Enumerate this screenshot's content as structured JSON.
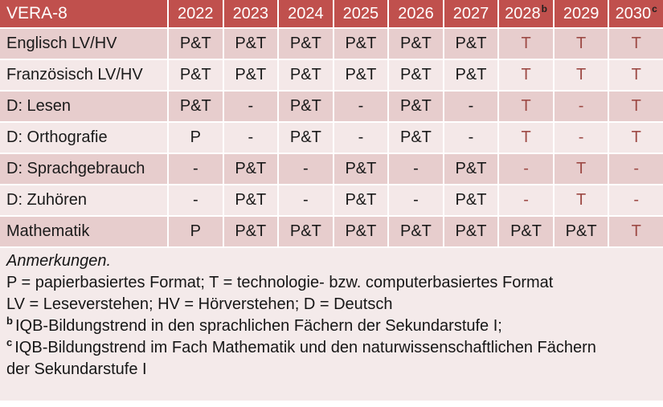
{
  "table": {
    "header": {
      "label": "VERA-8",
      "years": [
        {
          "label": "2022",
          "sup": ""
        },
        {
          "label": "2023",
          "sup": ""
        },
        {
          "label": "2024",
          "sup": ""
        },
        {
          "label": "2025",
          "sup": ""
        },
        {
          "label": "2026",
          "sup": ""
        },
        {
          "label": "2027",
          "sup": ""
        },
        {
          "label": "2028",
          "sup": "b"
        },
        {
          "label": "2029",
          "sup": ""
        },
        {
          "label": "2030",
          "sup": "c"
        }
      ]
    },
    "rows": [
      {
        "label": "Englisch LV/HV",
        "values": [
          "P&T",
          "P&T",
          "P&T",
          "P&T",
          "P&T",
          "P&T",
          "T",
          "T",
          "T"
        ],
        "red": [
          false,
          false,
          false,
          false,
          false,
          false,
          true,
          true,
          true
        ]
      },
      {
        "label": "Französisch LV/HV",
        "values": [
          "P&T",
          "P&T",
          "P&T",
          "P&T",
          "P&T",
          "P&T",
          "T",
          "T",
          "T"
        ],
        "red": [
          false,
          false,
          false,
          false,
          false,
          false,
          true,
          true,
          true
        ]
      },
      {
        "label": "D: Lesen",
        "values": [
          "P&T",
          "-",
          "P&T",
          "-",
          "P&T",
          "-",
          "T",
          "-",
          "T"
        ],
        "red": [
          false,
          false,
          false,
          false,
          false,
          false,
          true,
          true,
          true
        ]
      },
      {
        "label": "D: Orthografie",
        "values": [
          "P",
          "-",
          "P&T",
          "-",
          "P&T",
          "-",
          "T",
          "-",
          "T"
        ],
        "red": [
          false,
          false,
          false,
          false,
          false,
          false,
          true,
          true,
          true
        ]
      },
      {
        "label": "D: Sprachgebrauch",
        "values": [
          "-",
          "P&T",
          "-",
          "P&T",
          "-",
          "P&T",
          "-",
          "T",
          "-"
        ],
        "red": [
          false,
          false,
          false,
          false,
          false,
          false,
          true,
          true,
          true
        ]
      },
      {
        "label": "D: Zuhören",
        "values": [
          "-",
          "P&T",
          "-",
          "P&T",
          "-",
          "P&T",
          "-",
          "T",
          "-"
        ],
        "red": [
          false,
          false,
          false,
          false,
          false,
          false,
          true,
          true,
          true
        ]
      },
      {
        "label": "Mathematik",
        "values": [
          "P",
          "P&T",
          "P&T",
          "P&T",
          "P&T",
          "P&T",
          "P&T",
          "P&T",
          "T"
        ],
        "red": [
          false,
          false,
          false,
          false,
          false,
          false,
          false,
          false,
          true
        ]
      }
    ]
  },
  "notes": {
    "title": "Anmerkungen.",
    "formats": "P = papierbasiertes Format; T = technologie- bzw. computerbasiertes Format",
    "abbreviations": "LV = Leseverstehen; HV = Hörverstehen; D = Deutsch",
    "note_b_sup": "b",
    "note_b_text": "IQB-Bildungstrend in den sprachlichen Fächern der Sekundarstufe I;",
    "note_c_sup": "c",
    "note_c_text": "IQB-Bildungstrend im Fach Mathematik und den naturwissenschaftlichen Fächern der Sekundarstufe I"
  },
  "colors": {
    "header_bg": "#c0504d",
    "header_text": "#ffffff",
    "header_sup": "#1f1f1f",
    "band_dark": "#e7cdcd",
    "band_light": "#f4e8e8",
    "notes_bg": "#f4eaea",
    "accent_red": "#9d4a45",
    "text": "#1a1a1a"
  }
}
